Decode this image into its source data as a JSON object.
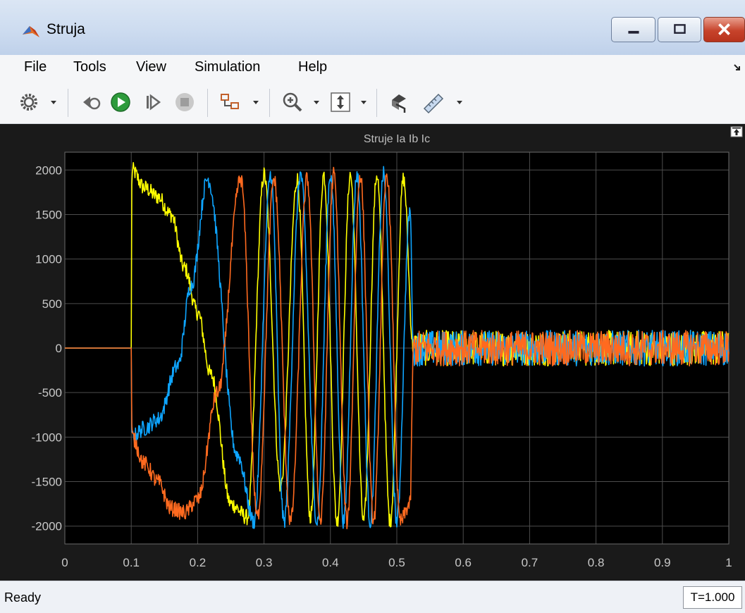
{
  "window": {
    "title": "Struja",
    "icon": "matlab-logo-icon"
  },
  "menu": [
    "File",
    "Tools",
    "View",
    "Simulation",
    "Help"
  ],
  "toolbar": {
    "icons": [
      "settings-gear-icon",
      "step-back-icon",
      "run-icon",
      "step-forward-icon",
      "stop-icon",
      "signal-selector-icon",
      "zoom-in-icon",
      "scale-axes-icon",
      "highlight-block-icon",
      "measurements-icon"
    ]
  },
  "status": {
    "text": "Ready",
    "time": "T=1.000"
  },
  "colors": {
    "background": "#1a1a1a",
    "axes": "#000000",
    "grid": "#4d4d4d",
    "text": "#c8c8c8",
    "series": [
      "#ffff00",
      "#0ea5ff",
      "#ff6a1f"
    ]
  },
  "chart_data": {
    "type": "line",
    "title": "Struje Ia Ib Ic",
    "xlabel": "",
    "ylabel": "",
    "xlim": [
      0,
      1
    ],
    "ylim": [
      -2200,
      2200
    ],
    "xticks": [
      "0",
      "0.1",
      "0.2",
      "0.3",
      "0.4",
      "0.5",
      "0.6",
      "0.7",
      "0.8",
      "0.9",
      "1"
    ],
    "yticks": [
      "2000",
      "1500",
      "1000",
      "500",
      "0",
      "-500",
      "-1000",
      "-1500",
      "-2000"
    ],
    "grid": true,
    "legend": "none",
    "series": [
      {
        "color": "#ffff00",
        "x": [
          0,
          0.1,
          0.101,
          0.12,
          0.14,
          0.16,
          0.18,
          0.2,
          0.22,
          0.25,
          0.275,
          0.3,
          0.325,
          0.35,
          0.37,
          0.39,
          0.41,
          0.43,
          0.45,
          0.47,
          0.49,
          0.51,
          0.525,
          1.0
        ],
        "y": [
          0,
          0,
          2000,
          1800,
          1700,
          1500,
          900,
          400,
          -300,
          -1750,
          -1900,
          1950,
          -1550,
          1900,
          -1900,
          1950,
          -1950,
          1950,
          -1950,
          1950,
          -1950,
          1900,
          0,
          0
        ]
      },
      {
        "color": "#0ea5ff",
        "x": [
          0,
          0.1,
          0.101,
          0.12,
          0.14,
          0.17,
          0.19,
          0.215,
          0.26,
          0.285,
          0.31,
          0.33,
          0.355,
          0.38,
          0.4,
          0.42,
          0.44,
          0.46,
          0.48,
          0.5,
          0.52,
          0.525,
          1.0
        ],
        "y": [
          0,
          0,
          -1000,
          -900,
          -800,
          -200,
          700,
          1900,
          -1200,
          -1950,
          1950,
          -1950,
          1950,
          -1950,
          1950,
          -1950,
          1950,
          -1950,
          1950,
          -1950,
          1550,
          0,
          0
        ]
      },
      {
        "color": "#ff6a1f",
        "x": [
          0,
          0.1,
          0.101,
          0.12,
          0.14,
          0.16,
          0.18,
          0.2,
          0.23,
          0.265,
          0.29,
          0.315,
          0.34,
          0.365,
          0.385,
          0.405,
          0.425,
          0.445,
          0.465,
          0.485,
          0.505,
          0.52,
          0.525,
          1.0
        ],
        "y": [
          0,
          0,
          -1000,
          -1300,
          -1500,
          -1800,
          -1850,
          -1700,
          -500,
          1900,
          -1900,
          1900,
          -1950,
          1900,
          -1950,
          1950,
          -1950,
          1950,
          -1950,
          1950,
          -1950,
          -1750,
          0,
          0
        ]
      }
    ],
    "noise": {
      "x_from": 0.525,
      "x_to": 1.0,
      "amplitude": 200
    }
  }
}
